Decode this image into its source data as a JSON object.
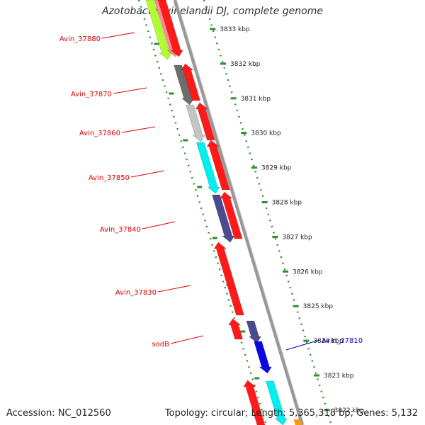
{
  "map": {
    "title": "Azotobacter vinelandii DJ, complete genome",
    "accession": "Accession: NC_012560",
    "summary": "Topology: circular; Length: 5,365,318 bp; Genes: 5,132",
    "ruler_ticks": [
      "3833 kbp",
      "3832 kbp",
      "3831 kbp",
      "3830 kbp",
      "3829 kbp",
      "3828 kbp",
      "3827 kbp",
      "3826 kbp",
      "3825 kbp",
      "3824 kbp",
      "3823 kbp",
      "3822 kbp"
    ],
    "gene_labels": [
      "Avin_37880",
      "Avin_37870",
      "Avin_37860",
      "Avin_37850",
      "Avin_37840",
      "Avin_37830",
      "sodB",
      "Avin_37810"
    ],
    "colors": {
      "label_red": "#dd0000",
      "label_blue": "#0000cc",
      "backbone": "#999999",
      "dots": "#2e8b2e",
      "arrow_red": "#ff1a1a",
      "arrow_blue": "#0a0ae0",
      "arrow_cyan": "#00f0f0",
      "arrow_green": "#b0ff30",
      "arrow_slate": "#4a4a90",
      "arrow_dark_gray": "#6e6e6e",
      "arrow_light_gray": "#c4c4c4",
      "arrow_pink": "#ff8a8a",
      "arrow_orange": "#ff9900"
    }
  }
}
